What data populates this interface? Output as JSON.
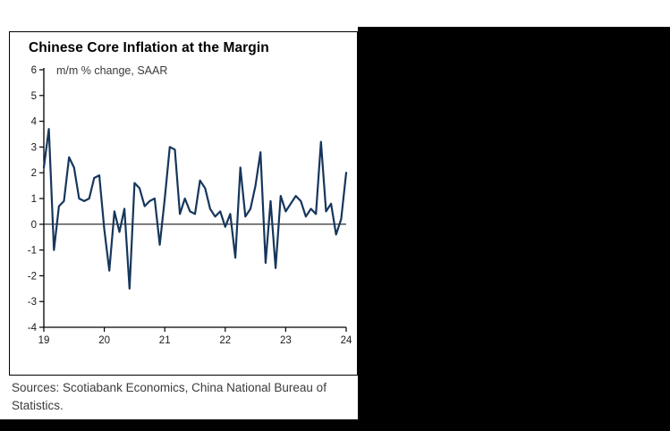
{
  "page": {
    "background": "#ffffff",
    "panel_color": "#000000"
  },
  "chart": {
    "title": "Chinese Core Inflation at the Margin",
    "subtitle": "m/m % change, SAAR",
    "sources": "Sources: Scotiabank Economics, China National Bureau of Statistics."
  },
  "chart_data": {
    "type": "line",
    "title": "Chinese Core Inflation at the Margin",
    "subtitle": "m/m % change, SAAR",
    "xlabel": "",
    "ylabel": "m/m % change, SAAR",
    "ylim": [
      -4,
      6
    ],
    "y_ticks": [
      6,
      5,
      4,
      3,
      2,
      1,
      0,
      -1,
      -2,
      -3,
      -4
    ],
    "x_tick_labels": [
      "19",
      "20",
      "21",
      "22",
      "23",
      "24"
    ],
    "x_start": "2019-01",
    "x_frequency": "monthly",
    "grid": "zero-line-only",
    "legend_position": "none",
    "line_color": "#16365c",
    "values": [
      2.2,
      3.7,
      -1.0,
      0.7,
      0.9,
      2.6,
      2.2,
      1.0,
      0.9,
      1.0,
      1.8,
      1.9,
      -0.2,
      -1.8,
      0.5,
      -0.3,
      0.6,
      -2.5,
      1.6,
      1.4,
      0.7,
      0.9,
      1.0,
      -0.8,
      1.0,
      3.0,
      2.9,
      0.4,
      1.0,
      0.5,
      0.4,
      1.7,
      1.4,
      0.6,
      0.3,
      0.5,
      -0.1,
      0.4,
      -1.3,
      2.2,
      0.3,
      0.6,
      1.5,
      2.8,
      -1.5,
      0.9,
      -1.7,
      1.1,
      0.5,
      0.8,
      1.1,
      0.9,
      0.3,
      0.6,
      0.4,
      3.2,
      0.5,
      0.8,
      -0.4,
      0.2,
      2.0
    ]
  }
}
